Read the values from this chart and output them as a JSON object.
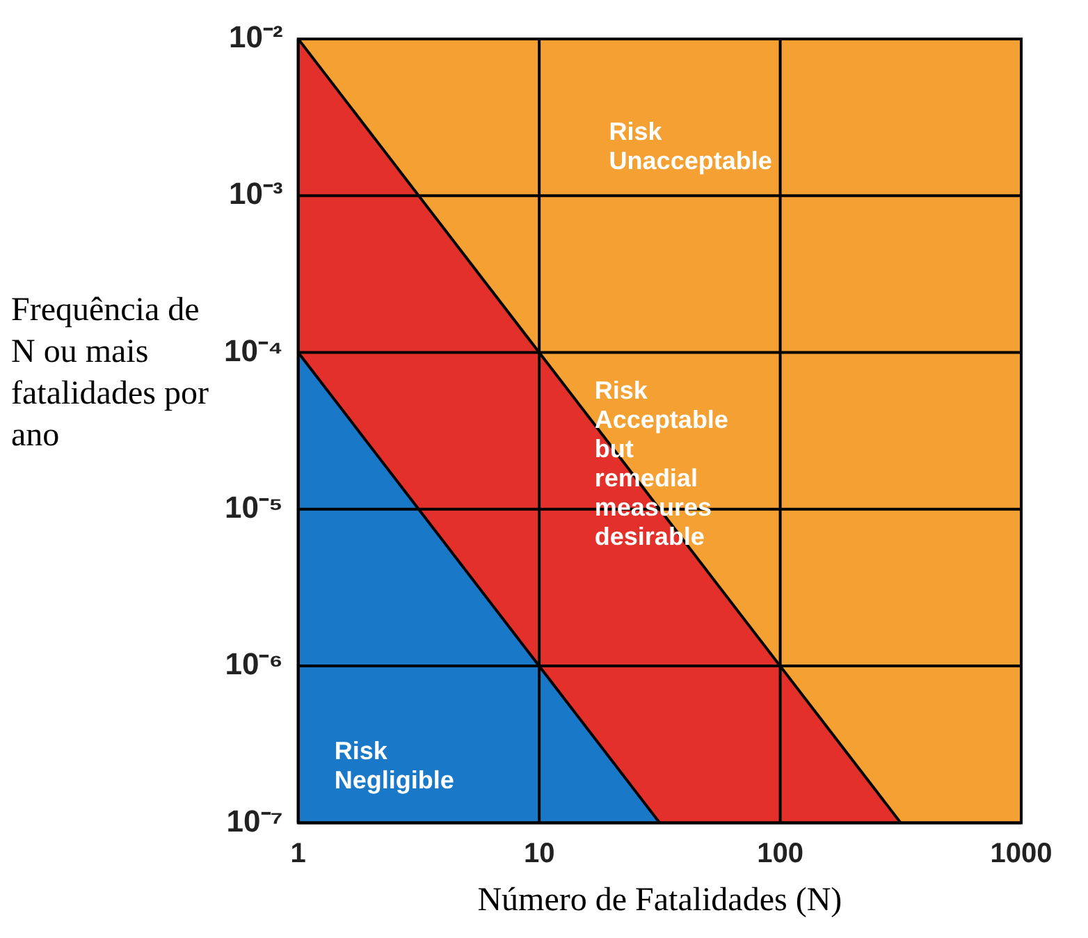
{
  "chart_data": {
    "type": "area",
    "xlabel": "Número de Fatalidades (N)",
    "ylabel": "Frequência de N ou mais fatalidades por ano",
    "log": "xy",
    "grid": true,
    "xlim": [
      1,
      1000
    ],
    "ylim": [
      1e-07,
      0.01
    ],
    "xticks": [
      1,
      10,
      100,
      1000
    ],
    "yticks": [
      {
        "value": 1e-07,
        "label": "10⁻⁷"
      },
      {
        "value": 1e-06,
        "label": "10⁻⁶"
      },
      {
        "value": 1e-05,
        "label": "10⁻⁵"
      },
      {
        "value": 0.0001,
        "label": "10⁻⁴"
      },
      {
        "value": 0.001,
        "label": "10⁻³"
      },
      {
        "value": 0.01,
        "label": "10⁻²"
      }
    ],
    "bands": [
      {
        "axis": "y",
        "from": 1e-07,
        "to": 0.01,
        "color": "#f5a032"
      }
    ],
    "series": [
      {
        "color": "#1a78c8",
        "x": [
          1,
          31.6
        ],
        "values": [
          0.0001,
          1e-07
        ]
      },
      {
        "color": "#e4302a",
        "x": [
          1,
          316
        ],
        "values": [
          0.01,
          1e-07
        ]
      }
    ],
    "annotations": [
      "Risk Unacceptable",
      "Risk Acceptable but remedial measures desirable",
      "Risk Negligible"
    ]
  }
}
